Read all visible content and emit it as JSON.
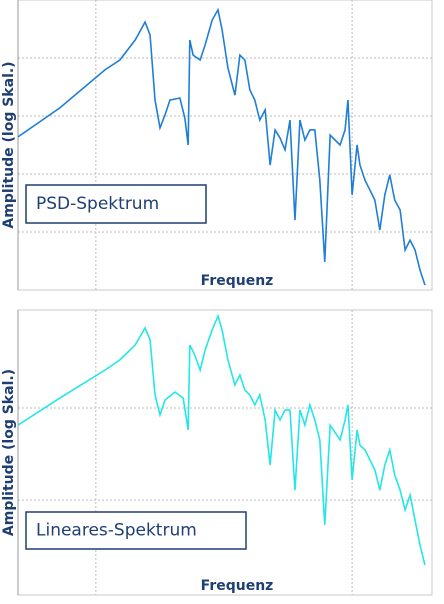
{
  "chart_data": [
    {
      "type": "line",
      "ylabel": "Amplitude (log Skal.)",
      "xlabel": "Frequenz",
      "grid": true,
      "xlim": [
        0,
        100
      ],
      "ylim": [
        0,
        100
      ],
      "xticks": [
        18.8,
        80.7
      ],
      "yticks": [
        20,
        40,
        60,
        80
      ],
      "x": [
        0,
        10.1,
        21,
        24.6,
        28.3,
        30.7,
        31.9,
        33.1,
        34.3,
        35.5,
        36.7,
        39.1,
        40.3,
        41.1,
        41.5,
        42.3,
        44,
        45.2,
        46.9,
        48.3,
        49.3,
        50.7,
        52.4,
        53.6,
        54.8,
        56,
        57.2,
        58.4,
        59.7,
        60.9,
        62.1,
        63.3,
        64.5,
        65.7,
        66.9,
        68.1,
        69.3,
        70.5,
        71.7,
        72.9,
        74.1,
        75.4,
        77.8,
        79,
        79.7,
        80.7,
        81.9,
        82.6,
        83.8,
        85,
        86.2,
        87.4,
        88.6,
        89.8,
        91,
        92.3,
        93.5,
        94.7,
        95.9,
        97.1,
        98.3
      ],
      "series": [
        {
          "name": "PSD-Spektrum",
          "color": "#1f7fd6",
          "values": [
            52.8,
            62.8,
            75.9,
            79.3,
            86.2,
            92.4,
            87.9,
            65.5,
            55.9,
            60.3,
            65.5,
            66.2,
            59.3,
            50,
            86.2,
            81,
            79.3,
            84.5,
            93.1,
            96.6,
            89.7,
            76.6,
            67.2,
            81,
            79.3,
            69,
            65.5,
            58.6,
            62.1,
            43.1,
            55.2,
            52.4,
            48.3,
            58.6,
            24.1,
            58.6,
            51.7,
            55.2,
            55.2,
            37.9,
            9.7,
            53.4,
            50,
            55.2,
            65.5,
            32.8,
            50,
            43.1,
            37.9,
            34.5,
            31,
            20.7,
            32.8,
            39.7,
            31,
            27.6,
            13.8,
            17.2,
            13.8,
            6.9,
            1.7
          ]
        }
      ]
    },
    {
      "type": "line",
      "ylabel": "Amplitude (log Skal.)",
      "xlabel": "Frequenz",
      "grid": true,
      "xlim": [
        0,
        100
      ],
      "ylim": [
        0,
        100
      ],
      "xticks": [
        18.8,
        80.7
      ],
      "yticks": [
        33.3,
        65.6
      ],
      "x": [
        0,
        10.1,
        21,
        24.6,
        28.3,
        30.7,
        31.9,
        33.1,
        34.3,
        35.5,
        37.9,
        39.9,
        41.1,
        41.5,
        42.7,
        44,
        45.2,
        46.9,
        48.3,
        49.3,
        50.7,
        52.4,
        53.6,
        54.8,
        56,
        57.2,
        58.4,
        59.7,
        60.9,
        62.1,
        63.3,
        64.5,
        65.7,
        66.9,
        68.1,
        69.3,
        70.5,
        71.7,
        72.9,
        74.1,
        75.4,
        77.8,
        79,
        79.7,
        80.7,
        81.9,
        82.6,
        83.8,
        85,
        86.2,
        87.4,
        88.6,
        89.8,
        91,
        92.3,
        93.5,
        94.7,
        95.9,
        97.1,
        98.3
      ],
      "series": [
        {
          "name": "Lineares-Spektrum",
          "color": "#24e6e6",
          "values": [
            59.6,
            69.1,
            78.9,
            82.5,
            87.7,
            93.7,
            89.5,
            70.2,
            63.2,
            68.4,
            71.2,
            69.1,
            57.9,
            87.7,
            84.2,
            78.9,
            86,
            93,
            97.9,
            93,
            82.5,
            73.7,
            77.2,
            71.9,
            70.2,
            66.7,
            70.2,
            61.4,
            45.6,
            64.9,
            61.4,
            64.9,
            64.9,
            36.8,
            64.9,
            59.6,
            66.7,
            61.4,
            54.4,
            24.6,
            59.6,
            54.4,
            61.4,
            66.7,
            40.4,
            57.9,
            52.6,
            50.9,
            47.4,
            43.9,
            36.8,
            45.6,
            50.9,
            42.1,
            36.8,
            29.8,
            35.1,
            26.3,
            17.5,
            10.5
          ]
        }
      ]
    }
  ]
}
